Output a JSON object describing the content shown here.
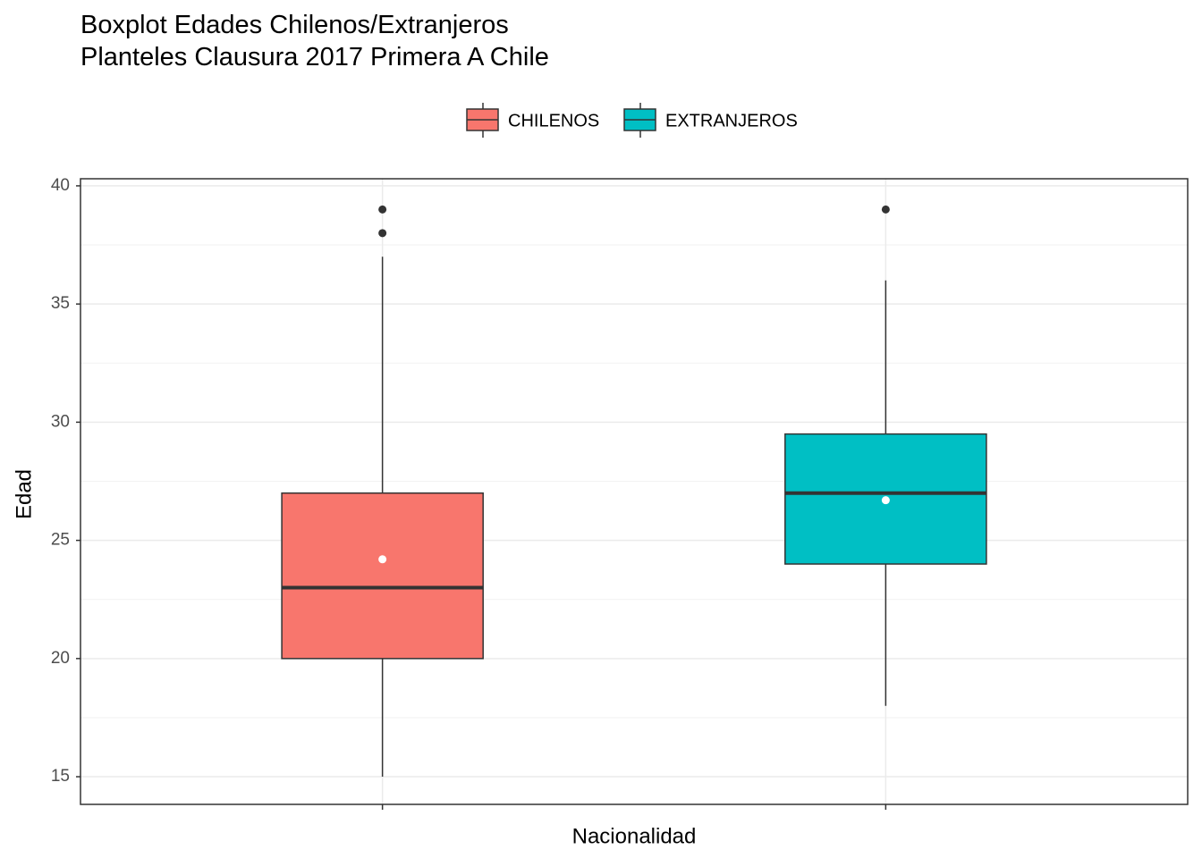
{
  "chart_data": {
    "type": "boxplot",
    "title": "Boxplot Edades Chilenos/Extranjeros\nPlanteles Clausura 2017 Primera A Chile",
    "xlabel": "Nacionalidad",
    "ylabel": "Edad",
    "ylim": [
      13.83,
      40.3
    ],
    "yticks": [
      15,
      20,
      25,
      30,
      35,
      40
    ],
    "grid": true,
    "legend": "top",
    "series": [
      {
        "name": "CHILENOS",
        "color": "#f8766d",
        "min": 15,
        "q1": 20,
        "median": 23,
        "q3": 27,
        "max": 37,
        "mean": 24.2,
        "outliers": [
          38,
          39
        ]
      },
      {
        "name": "EXTRANJEROS",
        "color": "#00bfc4",
        "min": 18,
        "q1": 24,
        "median": 27,
        "q3": 29.5,
        "max": 36,
        "mean": 26.7,
        "outliers": [
          39
        ]
      }
    ]
  }
}
